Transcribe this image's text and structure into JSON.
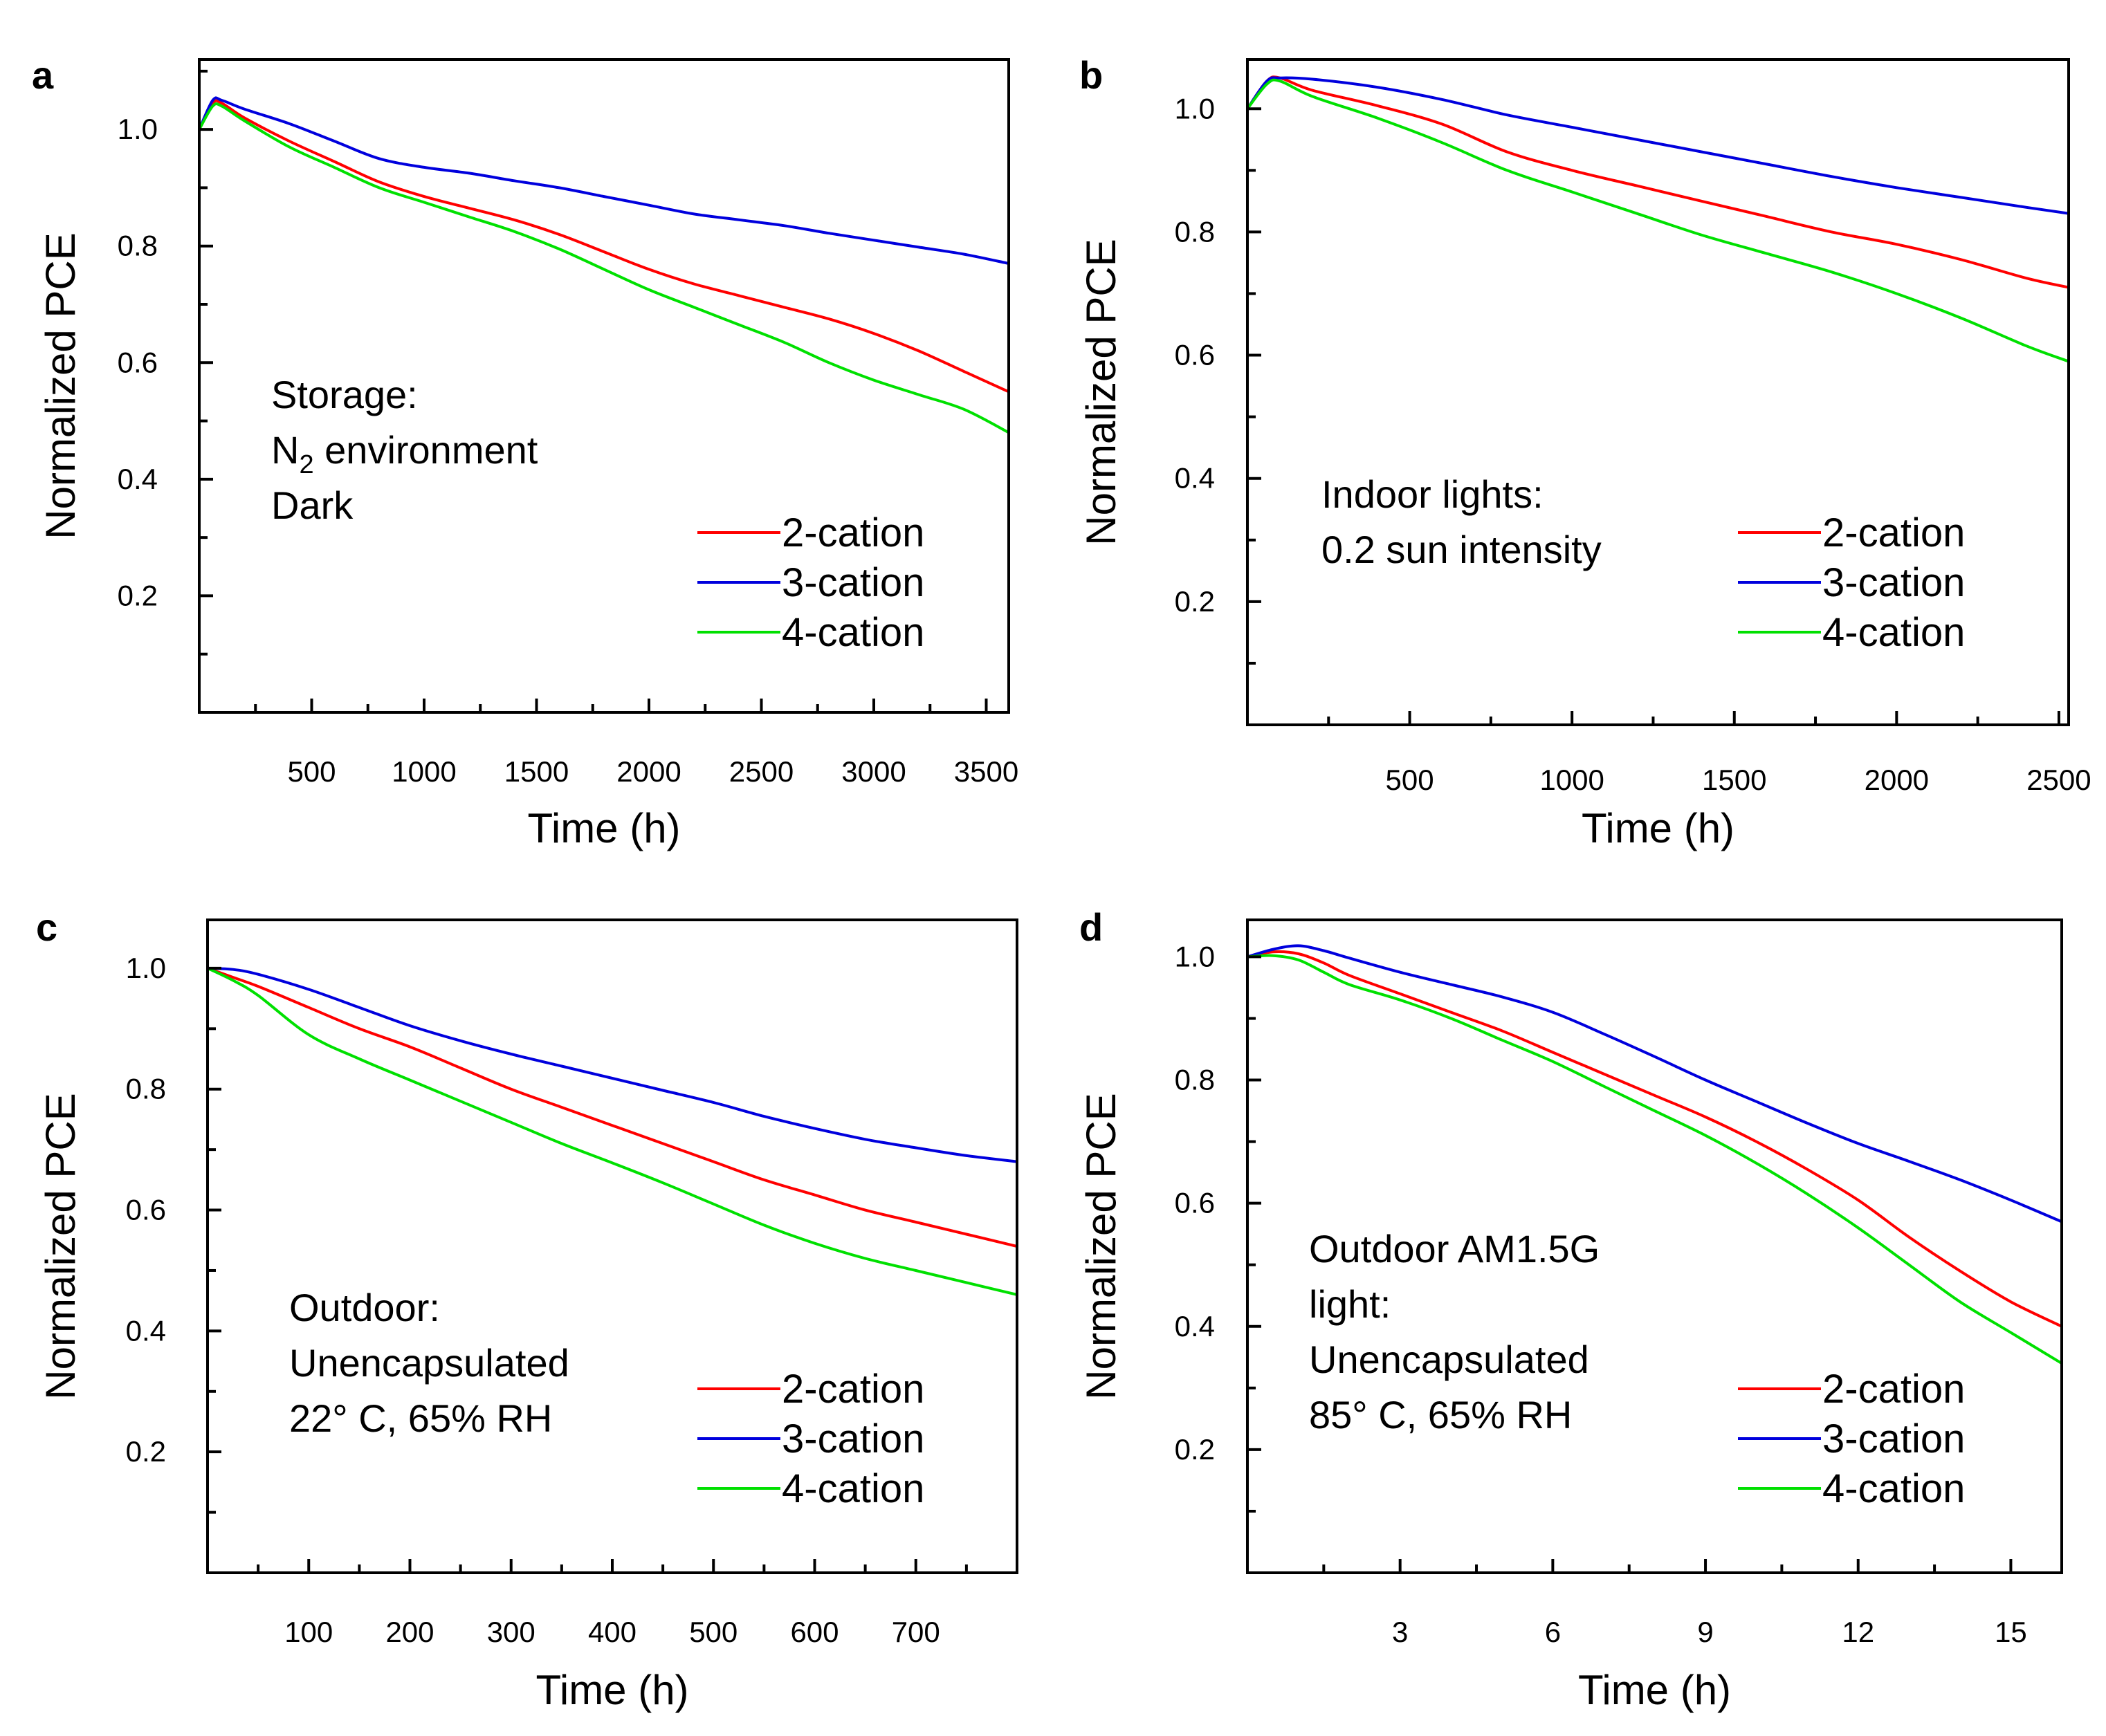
{
  "colors": {
    "2-cation": "#ff0000",
    "3-cation": "#0000dd",
    "4-cation": "#00e000"
  },
  "chart_data": [
    {
      "panel": "a",
      "type": "line",
      "xlabel": "Time (h)",
      "ylabel": "Normalized PCE",
      "xlim": [
        0,
        3600
      ],
      "ylim": [
        0.0,
        1.12
      ],
      "xticks": [
        500,
        1000,
        1500,
        2000,
        2500,
        3000,
        3500
      ],
      "yticks": [
        0.2,
        0.4,
        0.6,
        0.8,
        1.0
      ],
      "xtick_labels": [
        "500",
        "1000",
        "1500",
        "2000",
        "2500",
        "3000",
        "3500"
      ],
      "ytick_labels": [
        "0.2",
        "0.4",
        "0.6",
        "0.8",
        "1.0"
      ],
      "annotation": [
        "Storage:",
        "N",
        "2",
        " environment",
        "Dark"
      ],
      "legend": [
        "2-cation",
        "3-cation",
        "4-cation"
      ],
      "series": [
        {
          "name": "2-cation",
          "x": [
            0,
            60,
            100,
            200,
            400,
            600,
            800,
            1000,
            1200,
            1400,
            1600,
            1800,
            2000,
            2200,
            2400,
            2600,
            2800,
            3000,
            3200,
            3400,
            3600
          ],
          "y": [
            1.0,
            1.045,
            1.045,
            1.02,
            0.98,
            0.945,
            0.91,
            0.885,
            0.865,
            0.845,
            0.82,
            0.79,
            0.76,
            0.735,
            0.715,
            0.695,
            0.675,
            0.65,
            0.62,
            0.585,
            0.55
          ]
        },
        {
          "name": "3-cation",
          "x": [
            0,
            60,
            100,
            200,
            400,
            600,
            800,
            1000,
            1200,
            1400,
            1600,
            1800,
            2000,
            2200,
            2400,
            2600,
            2800,
            3000,
            3200,
            3400,
            3600
          ],
          "y": [
            1.0,
            1.05,
            1.05,
            1.035,
            1.01,
            0.98,
            0.95,
            0.935,
            0.925,
            0.912,
            0.9,
            0.885,
            0.87,
            0.855,
            0.845,
            0.835,
            0.822,
            0.81,
            0.798,
            0.786,
            0.77
          ]
        },
        {
          "name": "4-cation",
          "x": [
            0,
            60,
            100,
            200,
            400,
            600,
            800,
            1000,
            1200,
            1400,
            1600,
            1800,
            2000,
            2200,
            2400,
            2600,
            2800,
            3000,
            3200,
            3400,
            3600
          ],
          "y": [
            1.0,
            1.04,
            1.04,
            1.015,
            0.97,
            0.935,
            0.9,
            0.875,
            0.85,
            0.825,
            0.795,
            0.76,
            0.725,
            0.695,
            0.665,
            0.635,
            0.6,
            0.57,
            0.545,
            0.52,
            0.48
          ]
        }
      ]
    },
    {
      "panel": "b",
      "type": "line",
      "xlabel": "Time (h)",
      "ylabel": "Normalized PCE",
      "xlim": [
        0,
        2530
      ],
      "ylim": [
        0.0,
        1.08
      ],
      "xticks": [
        500,
        1000,
        1500,
        2000,
        2500
      ],
      "yticks": [
        0.2,
        0.4,
        0.6,
        0.8,
        1.0
      ],
      "xtick_labels": [
        "500",
        "1000",
        "1500",
        "2000",
        "2500"
      ],
      "ytick_labels": [
        "0.2",
        "0.4",
        "0.6",
        "0.8",
        "1.0"
      ],
      "annotation": [
        "Indoor lights:",
        "0.2 sun intensity"
      ],
      "legend": [
        "2-cation",
        "3-cation",
        "4-cation"
      ],
      "series": [
        {
          "name": "2-cation",
          "x": [
            0,
            60,
            100,
            200,
            400,
            600,
            800,
            1000,
            1200,
            1400,
            1600,
            1800,
            2000,
            2200,
            2400,
            2530
          ],
          "y": [
            1.0,
            1.045,
            1.05,
            1.03,
            1.005,
            0.975,
            0.93,
            0.9,
            0.875,
            0.85,
            0.825,
            0.8,
            0.78,
            0.755,
            0.725,
            0.71
          ]
        },
        {
          "name": "3-cation",
          "x": [
            0,
            60,
            100,
            200,
            400,
            600,
            800,
            1000,
            1200,
            1400,
            1600,
            1800,
            2000,
            2200,
            2400,
            2530
          ],
          "y": [
            1.0,
            1.045,
            1.05,
            1.048,
            1.035,
            1.015,
            0.99,
            0.97,
            0.95,
            0.93,
            0.91,
            0.89,
            0.872,
            0.856,
            0.84,
            0.83
          ]
        },
        {
          "name": "4-cation",
          "x": [
            0,
            60,
            100,
            200,
            400,
            600,
            800,
            1000,
            1200,
            1400,
            1600,
            1800,
            2000,
            2200,
            2400,
            2530
          ],
          "y": [
            1.0,
            1.04,
            1.045,
            1.02,
            0.985,
            0.945,
            0.9,
            0.865,
            0.83,
            0.795,
            0.765,
            0.735,
            0.7,
            0.66,
            0.615,
            0.59
          ]
        }
      ]
    },
    {
      "panel": "c",
      "type": "line",
      "xlabel": "Time (h)",
      "ylabel": "Normalized PCE",
      "xlim": [
        0,
        800
      ],
      "ylim": [
        0.0,
        1.08
      ],
      "xticks": [
        100,
        200,
        300,
        400,
        500,
        600,
        700
      ],
      "yticks": [
        0.2,
        0.4,
        0.6,
        0.8,
        1.0
      ],
      "xtick_labels": [
        "100",
        "200",
        "300",
        "400",
        "500",
        "600",
        "700"
      ],
      "ytick_labels": [
        "0.2",
        "0.4",
        "0.6",
        "0.8",
        "1.0"
      ],
      "annotation": [
        "Outdoor:",
        "Unencapsulated",
        "22° C, 65% RH"
      ],
      "legend": [
        "2-cation",
        "3-cation",
        "4-cation"
      ],
      "series": [
        {
          "name": "2-cation",
          "x": [
            0,
            25,
            50,
            100,
            150,
            200,
            250,
            300,
            350,
            400,
            450,
            500,
            550,
            600,
            650,
            700,
            750,
            800
          ],
          "y": [
            1.0,
            0.985,
            0.97,
            0.935,
            0.9,
            0.87,
            0.835,
            0.8,
            0.77,
            0.74,
            0.71,
            0.68,
            0.65,
            0.625,
            0.6,
            0.58,
            0.56,
            0.54
          ]
        },
        {
          "name": "3-cation",
          "x": [
            0,
            25,
            50,
            100,
            150,
            200,
            250,
            300,
            350,
            400,
            450,
            500,
            550,
            600,
            650,
            700,
            750,
            800
          ],
          "y": [
            1.0,
            0.998,
            0.99,
            0.965,
            0.935,
            0.905,
            0.88,
            0.858,
            0.838,
            0.818,
            0.798,
            0.778,
            0.755,
            0.735,
            0.717,
            0.703,
            0.69,
            0.68
          ]
        },
        {
          "name": "4-cation",
          "x": [
            0,
            25,
            50,
            100,
            150,
            200,
            250,
            300,
            350,
            400,
            450,
            500,
            550,
            600,
            650,
            700,
            750,
            800
          ],
          "y": [
            1.0,
            0.98,
            0.955,
            0.89,
            0.85,
            0.815,
            0.78,
            0.745,
            0.71,
            0.678,
            0.645,
            0.61,
            0.575,
            0.545,
            0.52,
            0.5,
            0.48,
            0.46
          ]
        }
      ]
    },
    {
      "panel": "d",
      "type": "line",
      "xlabel": "Time (h)",
      "ylabel": "Normalized PCE",
      "xlim": [
        0,
        16
      ],
      "ylim": [
        0.0,
        1.06
      ],
      "xticks": [
        3,
        6,
        9,
        12,
        15
      ],
      "yticks": [
        0.2,
        0.4,
        0.6,
        0.8,
        1.0
      ],
      "xtick_labels": [
        "3",
        "6",
        "9",
        "12",
        "15"
      ],
      "ytick_labels": [
        "0.2",
        "0.4",
        "0.6",
        "0.8",
        "1.0"
      ],
      "annotation": [
        "Outdoor AM1.5G",
        "light:",
        "Unencapsulated",
        "85° C, 65% RH"
      ],
      "legend": [
        "2-cation",
        "3-cation",
        "4-cation"
      ],
      "series": [
        {
          "name": "2-cation",
          "x": [
            0,
            0.5,
            1,
            1.5,
            2,
            3,
            4,
            5,
            6,
            7,
            8,
            9,
            10,
            11,
            12,
            13,
            14,
            15,
            16
          ],
          "y": [
            1.0,
            1.008,
            1.005,
            0.99,
            0.97,
            0.94,
            0.91,
            0.88,
            0.845,
            0.81,
            0.775,
            0.74,
            0.7,
            0.655,
            0.605,
            0.545,
            0.49,
            0.44,
            0.4
          ]
        },
        {
          "name": "3-cation",
          "x": [
            0,
            0.5,
            1,
            1.5,
            2,
            3,
            4,
            5,
            6,
            7,
            8,
            9,
            10,
            11,
            12,
            13,
            14,
            15,
            16
          ],
          "y": [
            1.0,
            1.012,
            1.018,
            1.01,
            0.998,
            0.975,
            0.955,
            0.935,
            0.91,
            0.875,
            0.838,
            0.8,
            0.765,
            0.73,
            0.697,
            0.668,
            0.638,
            0.605,
            0.57
          ]
        },
        {
          "name": "4-cation",
          "x": [
            0,
            0.5,
            1,
            1.5,
            2,
            3,
            4,
            5,
            6,
            7,
            8,
            9,
            10,
            11,
            12,
            13,
            14,
            15,
            16
          ],
          "y": [
            1.0,
            1.002,
            0.995,
            0.975,
            0.955,
            0.93,
            0.9,
            0.865,
            0.83,
            0.79,
            0.75,
            0.71,
            0.665,
            0.615,
            0.56,
            0.5,
            0.44,
            0.39,
            0.34
          ]
        }
      ]
    }
  ]
}
